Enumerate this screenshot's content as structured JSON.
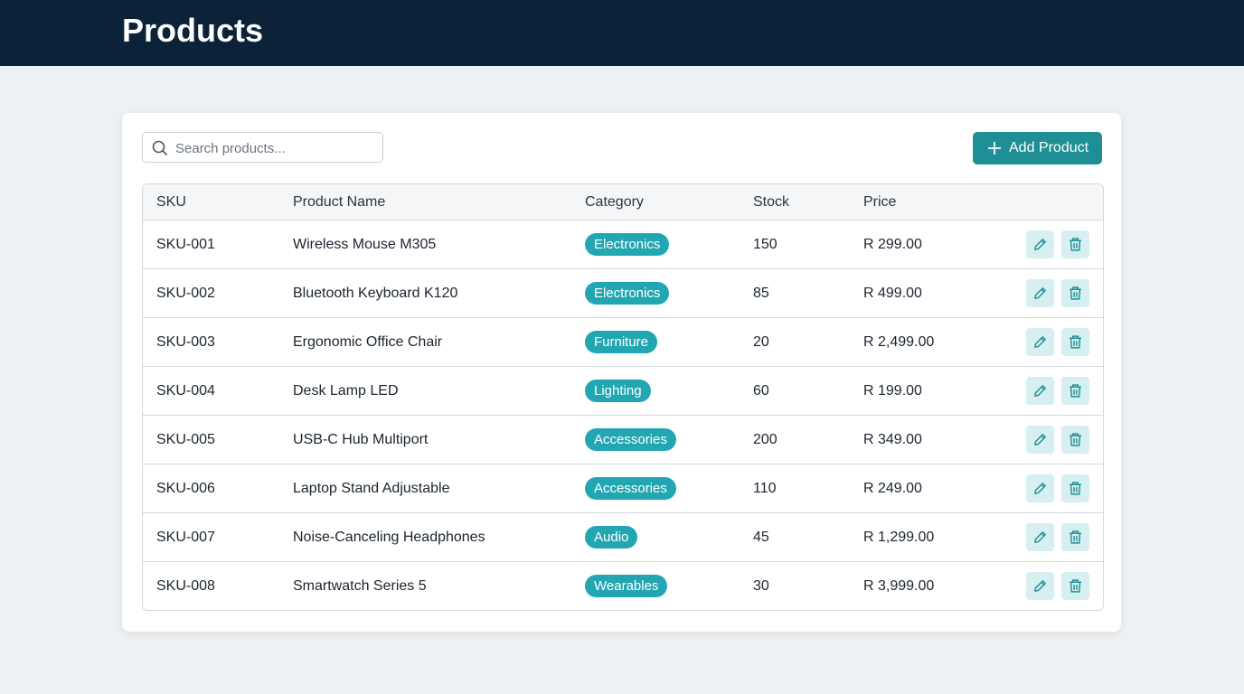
{
  "header": {
    "title": "Products"
  },
  "toolbar": {
    "search_placeholder": "Search products...",
    "add_button": "Add Product"
  },
  "table": {
    "columns": [
      "SKU",
      "Product Name",
      "Category",
      "Stock",
      "Price"
    ],
    "rows": [
      [
        "SKU-001",
        "Wireless Mouse M305",
        "Electronics",
        150,
        "R 299.00"
      ],
      [
        "SKU-002",
        "Bluetooth Keyboard K120",
        "Electronics",
        85,
        "R 499.00"
      ],
      [
        "SKU-003",
        "Ergonomic Office Chair",
        "Furniture",
        20,
        "R 2,499.00"
      ],
      [
        "SKU-004",
        "Desk Lamp LED",
        "Lighting",
        60,
        "R 199.00"
      ],
      [
        "SKU-005",
        "USB-C Hub Multiport",
        "Accessories",
        200,
        "R 349.00"
      ],
      [
        "SKU-006",
        "Laptop Stand Adjustable",
        "Accessories",
        110,
        "R 249.00"
      ],
      [
        "SKU-007",
        "Noise-Canceling Headphones",
        "Audio",
        45,
        "R 1,299.00"
      ],
      [
        "SKU-008",
        "Smartwatch Series 5",
        "Wearables",
        30,
        "R 3,999.00"
      ]
    ]
  }
}
